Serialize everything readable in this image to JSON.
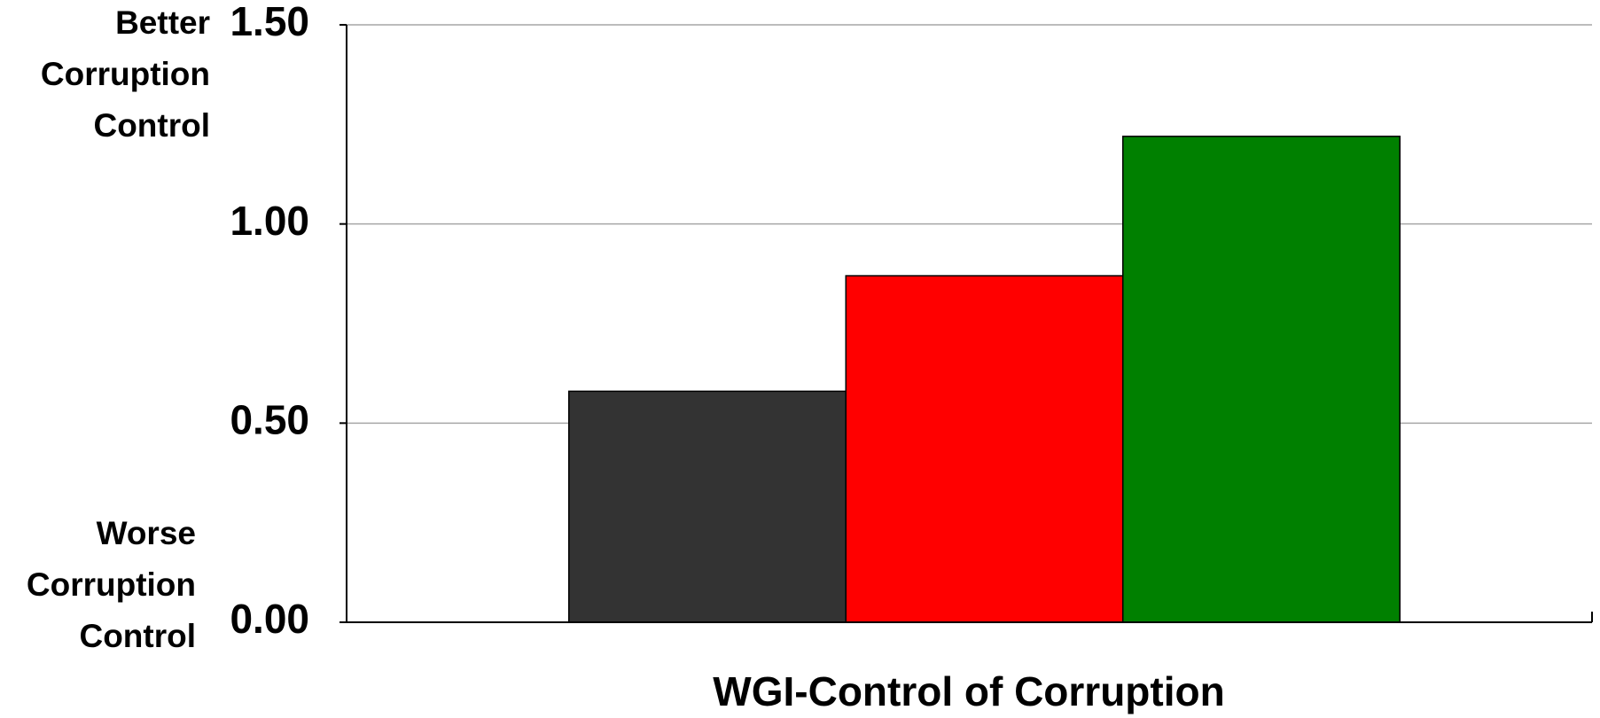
{
  "chart_data": {
    "type": "bar",
    "categories": [
      "WGI-Control of Corruption"
    ],
    "series": [
      {
        "color": "#333333",
        "values": [
          0.58
        ]
      },
      {
        "color": "#ff0000",
        "values": [
          0.87
        ]
      },
      {
        "color": "#008000",
        "values": [
          1.22
        ]
      }
    ],
    "ylim": [
      0,
      1.5
    ],
    "yticks": [
      {
        "value": 0,
        "label": "0.00"
      },
      {
        "value": 0.5,
        "label": "0.50"
      },
      {
        "value": 1,
        "label": "1.00"
      },
      {
        "value": 1.5,
        "label": "1.50"
      }
    ],
    "grid": true,
    "top_annotation": [
      "Better",
      "Corruption",
      "Control"
    ],
    "bottom_annotation": [
      "Worse",
      "Corruption",
      "Control"
    ]
  }
}
